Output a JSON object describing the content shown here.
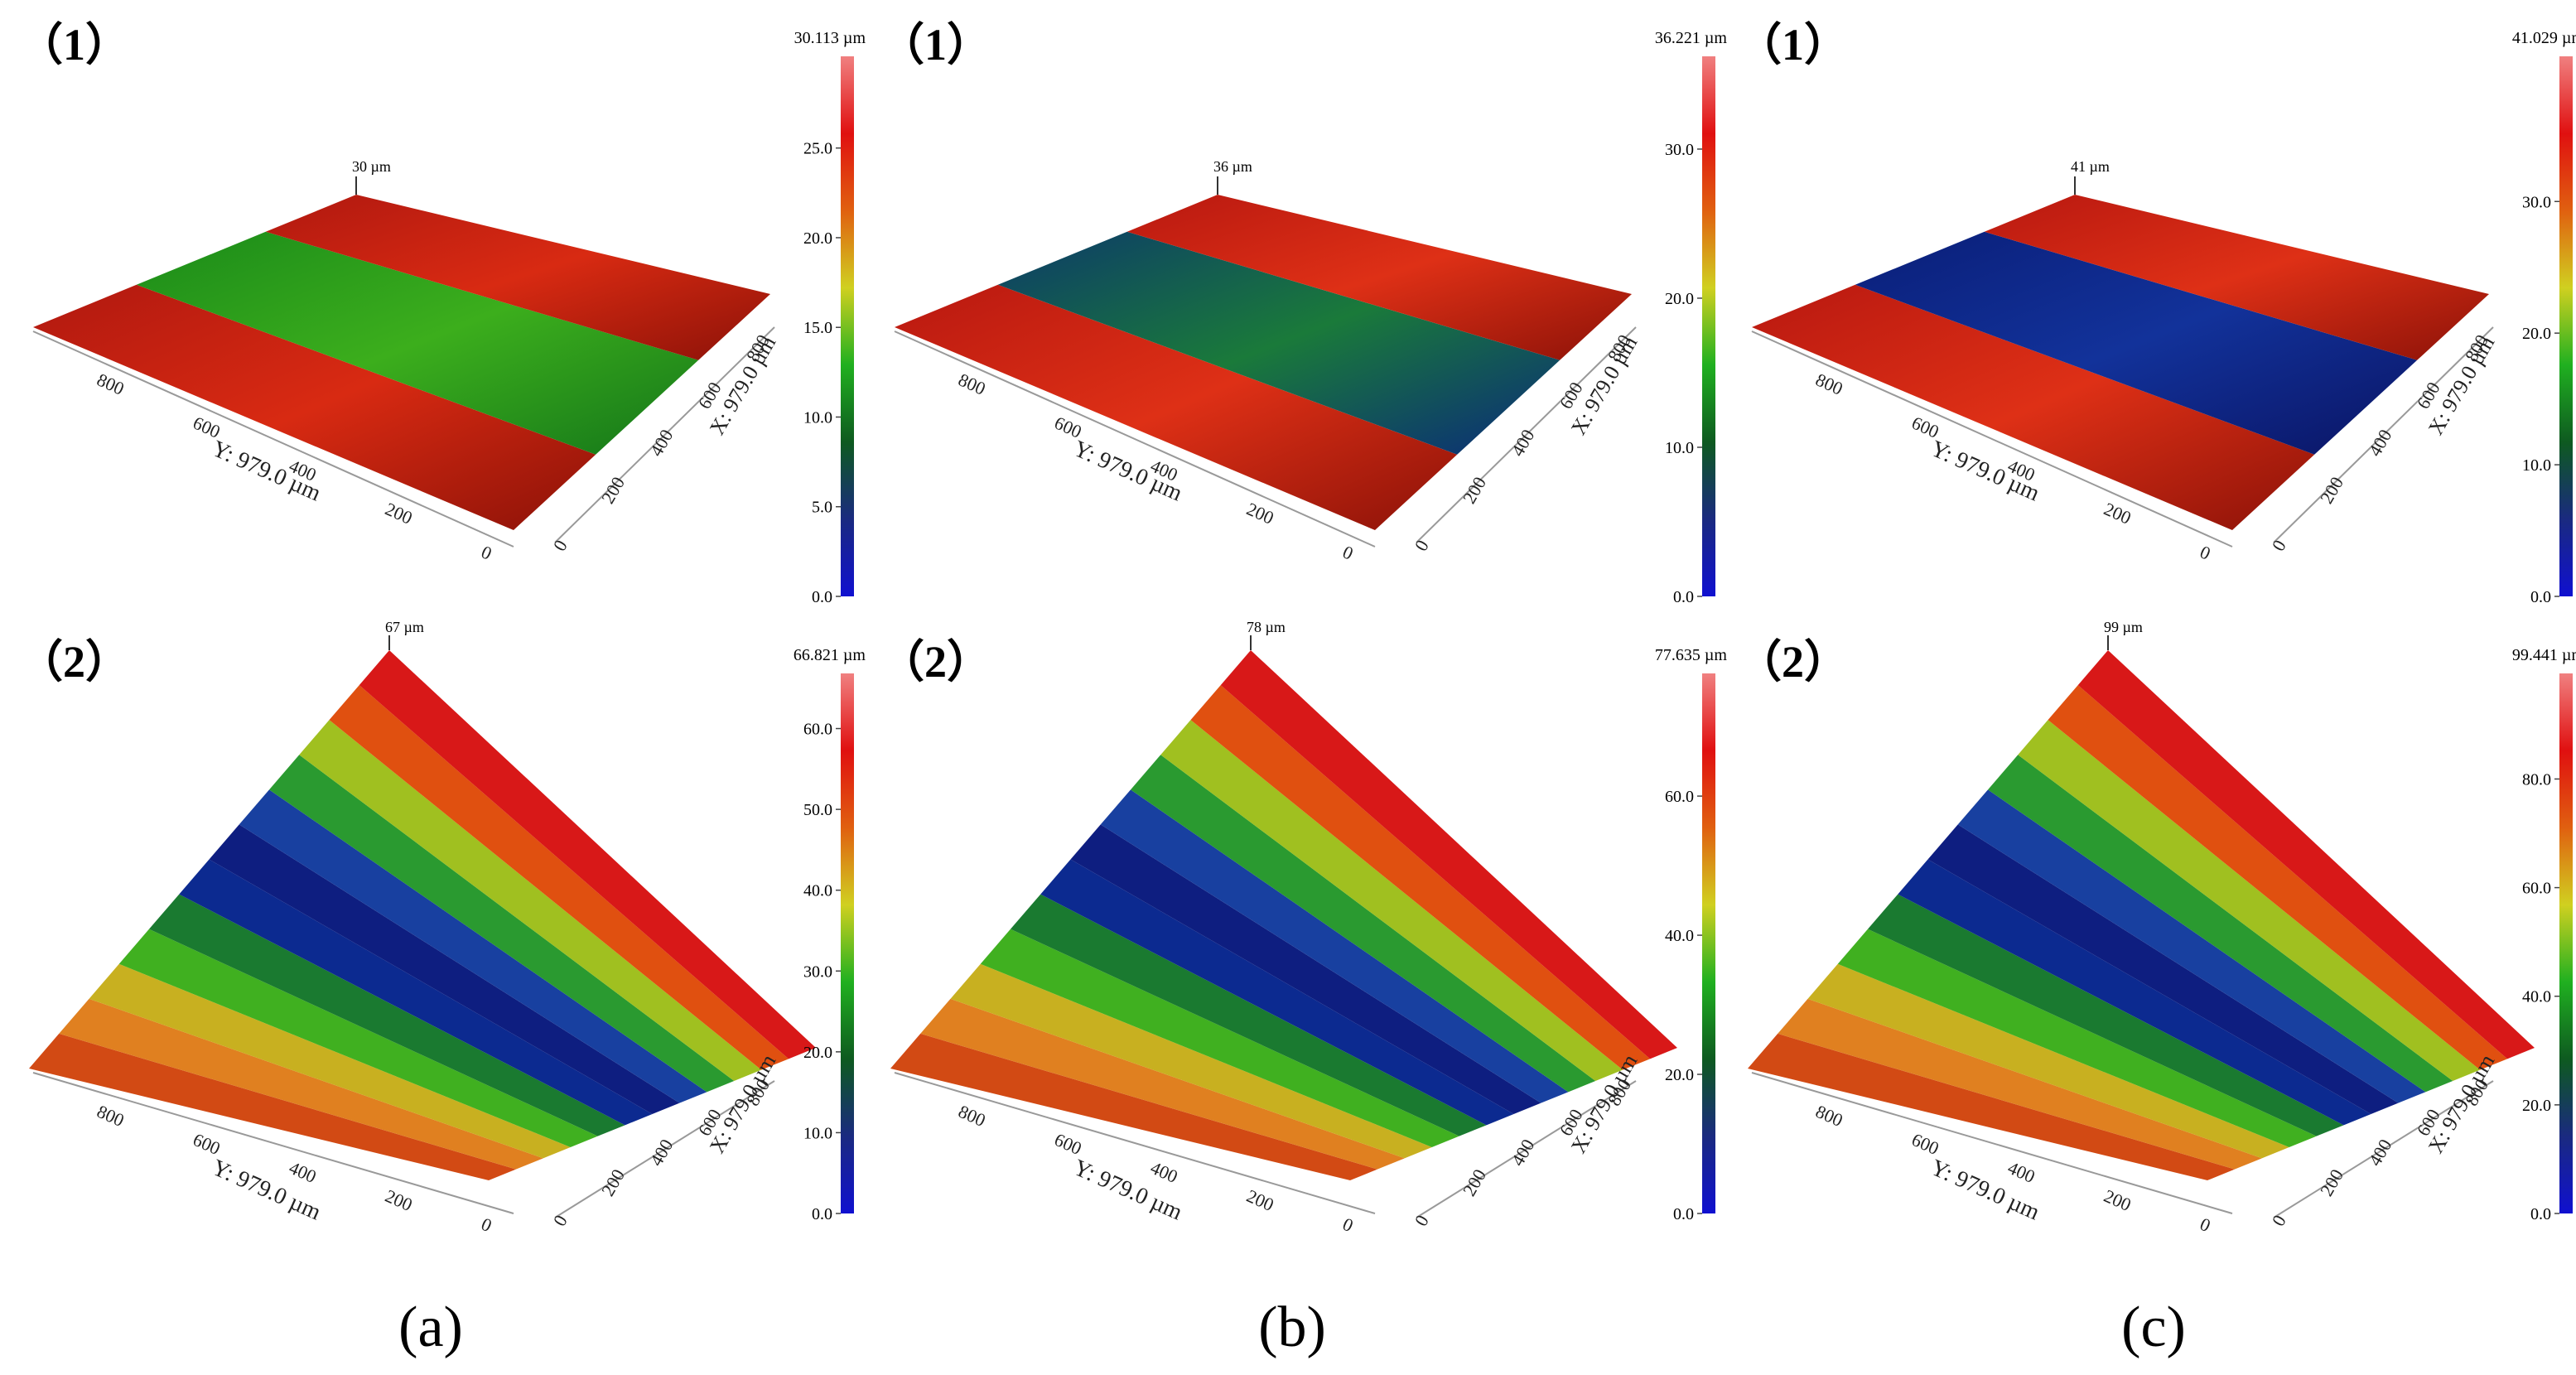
{
  "figure": {
    "column_labels": [
      "(a)",
      "(b)",
      "(c)"
    ],
    "panels": [
      {
        "id": "a1",
        "row_label": "（1）",
        "peak_label": "30 µm",
        "max_label": "30.113 µm",
        "ticks": [
          "0.0",
          "5.0",
          "10.0",
          "15.0",
          "20.0",
          "25.0"
        ],
        "max_value": 30.113,
        "tick_step": 5,
        "profile": "flat_groove",
        "groove_colors": [
          "#1a8a1a",
          "#3cae1c",
          "#14761a"
        ],
        "edge_colors": [
          "#b01810",
          "#d82a12",
          "#8c1208"
        ]
      },
      {
        "id": "b1",
        "row_label": "（1）",
        "peak_label": "36 µm",
        "max_label": "36.221 µm",
        "ticks": [
          "0.0",
          "10.0",
          "20.0",
          "30.0"
        ],
        "max_value": 36.221,
        "tick_step": 10,
        "profile": "flat_groove",
        "groove_colors": [
          "#0c3a6a",
          "#1a7a3a",
          "#0a2a7a"
        ],
        "edge_colors": [
          "#b81810",
          "#de3016",
          "#8c1208"
        ]
      },
      {
        "id": "c1",
        "row_label": "（1）",
        "peak_label": "41 µm",
        "max_label": "41.029 µm",
        "ticks": [
          "0.0",
          "10.0",
          "20.0",
          "30.0"
        ],
        "max_value": 41.029,
        "tick_step": 10,
        "profile": "flat_groove",
        "groove_colors": [
          "#0a1e78",
          "#12329a",
          "#0a1464"
        ],
        "edge_colors": [
          "#b81810",
          "#de3016",
          "#8c1208"
        ]
      },
      {
        "id": "a2",
        "row_label": "（2）",
        "peak_label": "67 µm",
        "max_label": "66.821 µm",
        "ticks": [
          "0.0",
          "10.0",
          "20.0",
          "30.0",
          "40.0",
          "50.0",
          "60.0"
        ],
        "max_value": 66.821,
        "tick_step": 10,
        "profile": "ramp"
      },
      {
        "id": "b2",
        "row_label": "（2）",
        "peak_label": "78 µm",
        "max_label": "77.635 µm",
        "ticks": [
          "0.0",
          "20.0",
          "40.0",
          "60.0"
        ],
        "max_value": 77.635,
        "tick_step": 20,
        "profile": "ramp"
      },
      {
        "id": "c2",
        "row_label": "（2）",
        "peak_label": "99 µm",
        "max_label": "99.441 µm",
        "ticks": [
          "0.0",
          "20.0",
          "40.0",
          "60.0",
          "80.0"
        ],
        "max_value": 99.441,
        "tick_step": 20,
        "profile": "ramp"
      }
    ],
    "axis": {
      "y_title": "Y: 979.0 µm",
      "x_title": "X: 979.0 µm",
      "y_ticks": [
        "800",
        "600",
        "400",
        "200",
        "0"
      ],
      "x_ticks": [
        "0",
        "200",
        "400",
        "600",
        "800"
      ]
    },
    "colormap": [
      "#1010d0",
      "#1a2a80",
      "#0e5a20",
      "#20b020",
      "#d0d020",
      "#e06010",
      "#e01010",
      "#f08080"
    ]
  }
}
